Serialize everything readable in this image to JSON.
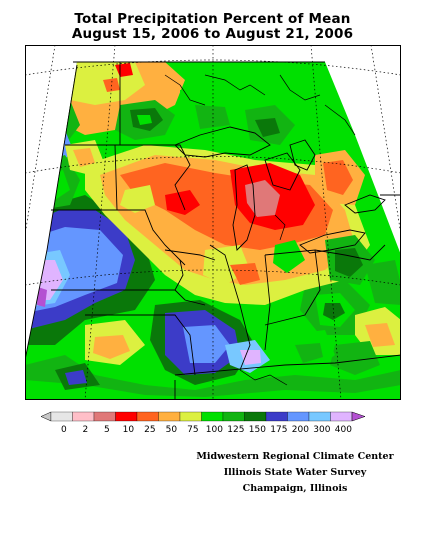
{
  "title": {
    "line1": "Total Precipitation Percent of Mean",
    "line2": "August 15, 2006 to August 21, 2006"
  },
  "legend": {
    "bins": [
      {
        "label": "0",
        "color": "#c8c8c8"
      },
      {
        "label": "2",
        "color": "#ffbfc8"
      },
      {
        "label": "5",
        "color": "#e07878"
      },
      {
        "label": "10",
        "color": "#ff0000"
      },
      {
        "label": "25",
        "color": "#ff6420"
      },
      {
        "label": "50",
        "color": "#ffb040"
      },
      {
        "label": "75",
        "color": "#dcf040"
      },
      {
        "label": "100",
        "color": "#00e000"
      },
      {
        "label": "125",
        "color": "#12b412"
      },
      {
        "label": "150",
        "color": "#0a780a"
      },
      {
        "label": "175",
        "color": "#3c3cc8"
      },
      {
        "label": "200",
        "color": "#6496ff"
      },
      {
        "label": "300",
        "color": "#78c8ff"
      },
      {
        "label": "400",
        "color": "#e0b4ff"
      }
    ],
    "high_color": "#b450d2"
  },
  "credits": {
    "line1": "Midwestern Regional Climate Center",
    "line2": "Illinois State Water Survey",
    "line3": "Champaign, Illinois"
  },
  "map": {
    "background": "#ffffff",
    "border": "#000000"
  }
}
